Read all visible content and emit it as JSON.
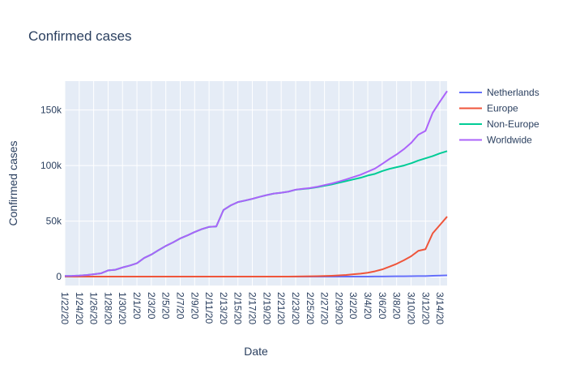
{
  "chart_data": {
    "type": "line",
    "title": "Confirmed cases",
    "xlabel": "Date",
    "ylabel": "Confirmed cases",
    "x_range": [
      "2020-01-22",
      "2020-03-15"
    ],
    "ylim": [
      -8000,
      176000
    ],
    "y_ticks": [
      0,
      50000,
      100000,
      150000
    ],
    "y_tick_labels": [
      "0",
      "50k",
      "100k",
      "150k"
    ],
    "x_tick_labels": [
      "1/22/20",
      "1/24/20",
      "1/26/20",
      "1/28/20",
      "1/30/20",
      "2/1/20",
      "2/3/20",
      "2/5/20",
      "2/7/20",
      "2/9/20",
      "2/11/20",
      "2/13/20",
      "2/15/20",
      "2/17/20",
      "2/19/20",
      "2/21/20",
      "2/23/20",
      "2/25/20",
      "2/27/20",
      "2/29/20",
      "3/2/20",
      "3/4/20",
      "3/6/20",
      "3/8/20",
      "3/10/20",
      "3/12/20",
      "3/14/20"
    ],
    "grid": true,
    "legend_position": "top-right",
    "colors": {
      "background": "#E5ECF6",
      "grid": "#ffffff"
    },
    "x": [
      "2020-01-22",
      "2020-01-23",
      "2020-01-24",
      "2020-01-25",
      "2020-01-26",
      "2020-01-27",
      "2020-01-28",
      "2020-01-29",
      "2020-01-30",
      "2020-01-31",
      "2020-02-01",
      "2020-02-02",
      "2020-02-03",
      "2020-02-04",
      "2020-02-05",
      "2020-02-06",
      "2020-02-07",
      "2020-02-08",
      "2020-02-09",
      "2020-02-10",
      "2020-02-11",
      "2020-02-12",
      "2020-02-13",
      "2020-02-14",
      "2020-02-15",
      "2020-02-16",
      "2020-02-17",
      "2020-02-18",
      "2020-02-19",
      "2020-02-20",
      "2020-02-21",
      "2020-02-22",
      "2020-02-23",
      "2020-02-24",
      "2020-02-25",
      "2020-02-26",
      "2020-02-27",
      "2020-02-28",
      "2020-02-29",
      "2020-03-01",
      "2020-03-02",
      "2020-03-03",
      "2020-03-04",
      "2020-03-05",
      "2020-03-06",
      "2020-03-07",
      "2020-03-08",
      "2020-03-09",
      "2020-03-10",
      "2020-03-11",
      "2020-03-12",
      "2020-03-13",
      "2020-03-14",
      "2020-03-15"
    ],
    "series": [
      {
        "name": "Netherlands",
        "color": "#636EFA",
        "values": [
          0,
          0,
          0,
          0,
          0,
          0,
          0,
          0,
          0,
          0,
          0,
          0,
          0,
          0,
          0,
          0,
          0,
          0,
          0,
          0,
          0,
          0,
          0,
          0,
          0,
          0,
          0,
          0,
          0,
          0,
          0,
          0,
          0,
          0,
          0,
          0,
          0,
          1,
          6,
          10,
          18,
          24,
          38,
          82,
          128,
          188,
          265,
          321,
          382,
          503,
          503,
          804,
          959,
          1135
        ]
      },
      {
        "name": "Europe",
        "color": "#EF553B",
        "values": [
          0,
          0,
          2,
          3,
          3,
          4,
          4,
          4,
          5,
          8,
          10,
          10,
          18,
          20,
          20,
          20,
          22,
          22,
          22,
          22,
          22,
          22,
          22,
          22,
          22,
          22,
          22,
          22,
          22,
          22,
          22,
          24,
          100,
          200,
          300,
          400,
          600,
          800,
          1100,
          1500,
          2100,
          2700,
          3500,
          4800,
          6500,
          8900,
          11500,
          14700,
          18300,
          23200,
          24700,
          39000,
          46500,
          54000
        ]
      },
      {
        "name": "Non-Europe",
        "color": "#00CC96",
        "values": [
          555,
          653,
          939,
          1434,
          2115,
          2923,
          5578,
          6161,
          8232,
          9923,
          12028,
          16777,
          19864,
          23882,
          27618,
          30791,
          34388,
          37104,
          40129,
          42753,
          44745,
          45158,
          59985,
          64115,
          67093,
          68500,
          70000,
          71800,
          73400,
          74800,
          75500,
          76500,
          78200,
          78900,
          79500,
          80500,
          81800,
          83000,
          84500,
          86000,
          87500,
          89000,
          91000,
          92500,
          95000,
          97000,
          98500,
          100000,
          102000,
          104500,
          106500,
          108500,
          111000,
          113000
        ]
      },
      {
        "name": "Worldwide",
        "color": "#AB63FA",
        "values": [
          555,
          653,
          941,
          1437,
          2118,
          2927,
          5582,
          6165,
          8237,
          9931,
          12038,
          16787,
          19882,
          23902,
          27638,
          30811,
          34410,
          37126,
          40151,
          42775,
          44767,
          45180,
          60007,
          64137,
          67115,
          68522,
          70022,
          71822,
          73422,
          74822,
          75522,
          76524,
          78300,
          79100,
          79800,
          80900,
          82400,
          83800,
          85600,
          87500,
          89600,
          91700,
          94500,
          97300,
          101500,
          105900,
          110000,
          114700,
          120300,
          127700,
          131200,
          147500,
          157500,
          167000
        ]
      }
    ]
  }
}
